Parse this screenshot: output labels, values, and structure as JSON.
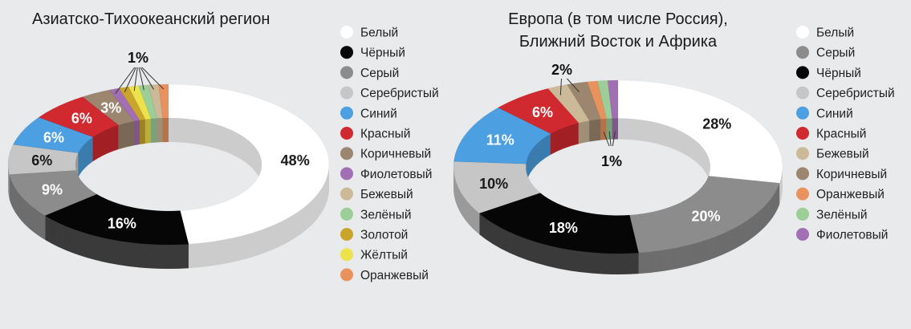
{
  "chart_data": [
    {
      "type": "pie",
      "title": "Азиатско-Тихоокеанский регион",
      "legend_placement": "right",
      "slices": [
        {
          "name": "Белый",
          "value": 48,
          "label": "48%",
          "color": "#ffffff"
        },
        {
          "name": "Чёрный",
          "value": 16,
          "label": "16%",
          "color": "#060606"
        },
        {
          "name": "Серый",
          "value": 9,
          "label": "9%",
          "color": "#8c8c8c"
        },
        {
          "name": "Серебристый",
          "value": 6,
          "label": "6%",
          "color": "#c6c6c6"
        },
        {
          "name": "Синий",
          "value": 6,
          "label": "6%",
          "color": "#4c9fe0"
        },
        {
          "name": "Красный",
          "value": 6,
          "label": "6%",
          "color": "#d02a30"
        },
        {
          "name": "Коричневый",
          "value": 3,
          "label": "3%",
          "color": "#9c8670"
        },
        {
          "name": "Фиолетовый",
          "value": 1,
          "label": "",
          "color": "#a26fb4"
        },
        {
          "name": "Золотой",
          "value": 1,
          "label": "",
          "color": "#c9a52c"
        },
        {
          "name": "Жёлтый",
          "value": 1,
          "label": "",
          "color": "#ece24c"
        },
        {
          "name": "Зелёный",
          "value": 1,
          "label": "",
          "color": "#9ccf98"
        },
        {
          "name": "Бежевый",
          "value": 1,
          "label": "",
          "color": "#cbb998"
        },
        {
          "name": "Оранжевый",
          "value": 1,
          "label": "",
          "color": "#e8935e"
        }
      ],
      "group_label": "1%",
      "legend": [
        "Белый",
        "Чёрный",
        "Серый",
        "Серебристый",
        "Синий",
        "Красный",
        "Коричневый",
        "Фиолетовый",
        "Бежевый",
        "Зелёный",
        "Золотой",
        "Жёлтый",
        "Оранжевый"
      ]
    },
    {
      "type": "pie",
      "title": [
        "Европа (в том числе Россия),",
        "Ближний Восток и Африка"
      ],
      "legend_placement": "right",
      "slices": [
        {
          "name": "Белый",
          "value": 28,
          "label": "28%",
          "color": "#ffffff"
        },
        {
          "name": "Серый",
          "value": 20,
          "label": "20%",
          "color": "#8c8c8c"
        },
        {
          "name": "Чёрный",
          "value": 18,
          "label": "18%",
          "color": "#060606"
        },
        {
          "name": "Серебристый",
          "value": 10,
          "label": "10%",
          "color": "#c6c6c6"
        },
        {
          "name": "Синий",
          "value": 11,
          "label": "11%",
          "color": "#4c9fe0"
        },
        {
          "name": "Красный",
          "value": 6,
          "label": "6%",
          "color": "#d02a30"
        },
        {
          "name": "Бежевый",
          "value": 2,
          "label": "",
          "color": "#cbb998"
        },
        {
          "name": "Коричневый",
          "value": 2,
          "label": "",
          "color": "#9c8670"
        },
        {
          "name": "Оранжевый",
          "value": 1,
          "label": "",
          "color": "#e8935e"
        },
        {
          "name": "Зелёный",
          "value": 1,
          "label": "",
          "color": "#9ccf98"
        },
        {
          "name": "Фиолетовый",
          "value": 1,
          "label": "",
          "color": "#a26fb4"
        }
      ],
      "group_label_top": "2%",
      "group_label_bottom": "1%",
      "legend": [
        "Белый",
        "Серый",
        "Чёрный",
        "Серебристый",
        "Синий",
        "Красный",
        "Бежевый",
        "Коричневый",
        "Оранжевый",
        "Зелёный",
        "Фиолетовый"
      ]
    }
  ],
  "background": "#e9eaec"
}
